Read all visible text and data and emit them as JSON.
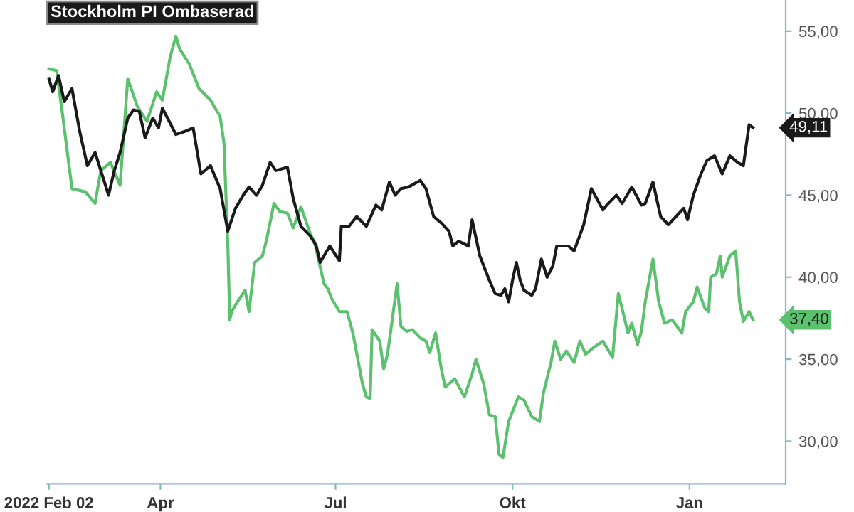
{
  "chart_data": {
    "type": "line",
    "xlim": [
      "2022-02-01",
      "2023-02-20"
    ],
    "xticks": [
      {
        "value": "2022-02-02",
        "label": "2022 Feb 02"
      },
      {
        "value": "2022-04-01",
        "label": "Apr"
      },
      {
        "value": "2022-07-01",
        "label": "Jul"
      },
      {
        "value": "2022-10-01",
        "label": "Okt"
      },
      {
        "value": "2023-01-01",
        "label": "Jan"
      }
    ],
    "ylim": [
      27.4,
      56.9
    ],
    "yticks": [
      {
        "value": 30,
        "label": "30,00"
      },
      {
        "value": 35,
        "label": "35,00"
      },
      {
        "value": 40,
        "label": "40,00"
      },
      {
        "value": 45,
        "label": "45,00"
      },
      {
        "value": 50,
        "label": "50,00"
      },
      {
        "value": 55,
        "label": "55,00"
      }
    ],
    "grid": false,
    "legend": "top left",
    "marker": "none",
    "line_style": "solid",
    "annotations": [
      "37,40",
      "49,11"
    ],
    "series": [
      {
        "color": "#5cc16f",
        "x": [
          "2022-02-02",
          "2022-02-06",
          "2022-02-09",
          "2022-02-14",
          "2022-02-21",
          "2022-02-26",
          "2022-03-01",
          "2022-03-06",
          "2022-03-11",
          "2022-03-15",
          "2022-03-20",
          "2022-03-25",
          "2022-03-30",
          "2022-04-02",
          "2022-04-06",
          "2022-04-09",
          "2022-04-11",
          "2022-04-16",
          "2022-04-21",
          "2022-04-27",
          "2022-05-02",
          "2022-05-04",
          "2022-05-06",
          "2022-05-07",
          "2022-05-08",
          "2022-05-11",
          "2022-05-15",
          "2022-05-17",
          "2022-05-20",
          "2022-05-24",
          "2022-05-26",
          "2022-05-30",
          "2022-06-02",
          "2022-06-06",
          "2022-06-09",
          "2022-06-13",
          "2022-06-18",
          "2022-06-20",
          "2022-06-25",
          "2022-06-27",
          "2022-06-29",
          "2022-07-03",
          "2022-07-07",
          "2022-07-10",
          "2022-07-15",
          "2022-07-17",
          "2022-07-19",
          "2022-07-20",
          "2022-07-24",
          "2022-07-26",
          "2022-07-28",
          "2022-07-30",
          "2022-08-02",
          "2022-08-04",
          "2022-08-07",
          "2022-08-10",
          "2022-08-14",
          "2022-08-17",
          "2022-08-19",
          "2022-08-22",
          "2022-08-25",
          "2022-08-27",
          "2022-09-01",
          "2022-09-06",
          "2022-09-10",
          "2022-09-12",
          "2022-09-16",
          "2022-09-19",
          "2022-09-22",
          "2022-09-24",
          "2022-09-26",
          "2022-09-29",
          "2022-10-04",
          "2022-10-07",
          "2022-10-11",
          "2022-10-15",
          "2022-10-17",
          "2022-10-21",
          "2022-10-23",
          "2022-10-26",
          "2022-10-29",
          "2022-11-02",
          "2022-11-05",
          "2022-11-08",
          "2022-11-12",
          "2022-11-17",
          "2022-11-22",
          "2022-11-25",
          "2022-11-28",
          "2022-11-30",
          "2022-12-02",
          "2022-12-05",
          "2022-12-07",
          "2022-12-09",
          "2022-12-13",
          "2022-12-16",
          "2022-12-19",
          "2022-12-23",
          "2022-12-28",
          "2022-12-30",
          "2023-01-03",
          "2023-01-05",
          "2023-01-09",
          "2023-01-11",
          "2023-01-12",
          "2023-01-15",
          "2023-01-17",
          "2023-01-18",
          "2023-01-22",
          "2023-01-25",
          "2023-01-27",
          "2023-01-29",
          "2023-02-01",
          "2023-02-03"
        ],
        "values": [
          52.7,
          52.6,
          50.0,
          45.4,
          45.2,
          44.5,
          46.5,
          47.0,
          45.6,
          52.1,
          50.4,
          49.5,
          51.3,
          50.8,
          53.4,
          54.7,
          53.9,
          53.0,
          51.5,
          50.8,
          49.8,
          48.2,
          42.0,
          37.4,
          37.9,
          38.5,
          39.2,
          37.9,
          40.9,
          41.3,
          42.2,
          44.5,
          44.0,
          43.9,
          43.0,
          44.3,
          42.6,
          42.2,
          39.6,
          39.3,
          38.7,
          37.9,
          37.9,
          36.6,
          33.5,
          32.7,
          32.6,
          36.8,
          36.1,
          34.4,
          35.3,
          37.0,
          39.6,
          37.0,
          36.7,
          36.8,
          36.3,
          36.1,
          35.4,
          36.6,
          34.4,
          33.3,
          33.8,
          32.7,
          34.1,
          35.0,
          33.5,
          31.6,
          31.5,
          29.2,
          29.0,
          31.2,
          32.7,
          32.5,
          31.5,
          31.2,
          32.9,
          34.8,
          36.1,
          35.0,
          35.5,
          34.8,
          36.1,
          35.3,
          35.7,
          36.1,
          35.1,
          39.0,
          37.6,
          36.6,
          37.2,
          35.9,
          36.7,
          38.5,
          41.1,
          38.5,
          37.2,
          37.4,
          36.6,
          37.9,
          38.5,
          39.4,
          38.1,
          37.9,
          40.0,
          40.2,
          41.3,
          40.0,
          41.3,
          41.6,
          38.5,
          37.3,
          37.9,
          37.4
        ]
      },
      {
        "name": "Stockholm PI Ombaserad",
        "color": "#1a1a1a",
        "x": [
          "2022-02-02",
          "2022-02-04",
          "2022-02-07",
          "2022-02-10",
          "2022-02-14",
          "2022-02-18",
          "2022-02-22",
          "2022-02-26",
          "2022-03-01",
          "2022-03-05",
          "2022-03-08",
          "2022-03-11",
          "2022-03-15",
          "2022-03-18",
          "2022-03-21",
          "2022-03-24",
          "2022-03-28",
          "2022-03-31",
          "2022-04-02",
          "2022-04-06",
          "2022-04-09",
          "2022-04-14",
          "2022-04-18",
          "2022-04-22",
          "2022-04-27",
          "2022-05-02",
          "2022-05-06",
          "2022-05-10",
          "2022-05-14",
          "2022-05-17",
          "2022-05-21",
          "2022-05-24",
          "2022-05-28",
          "2022-05-31",
          "2022-06-06",
          "2022-06-09",
          "2022-06-13",
          "2022-06-18",
          "2022-06-21",
          "2022-06-23",
          "2022-06-28",
          "2022-07-03",
          "2022-07-04",
          "2022-07-08",
          "2022-07-12",
          "2022-07-17",
          "2022-07-22",
          "2022-07-25",
          "2022-07-29",
          "2022-08-01",
          "2022-08-04",
          "2022-08-08",
          "2022-08-14",
          "2022-08-17",
          "2022-08-21",
          "2022-08-25",
          "2022-08-29",
          "2022-08-31",
          "2022-09-03",
          "2022-09-08",
          "2022-09-10",
          "2022-09-14",
          "2022-09-19",
          "2022-09-22",
          "2022-09-25",
          "2022-09-27",
          "2022-09-29",
          "2022-10-01",
          "2022-10-03",
          "2022-10-05",
          "2022-10-07",
          "2022-10-11",
          "2022-10-13",
          "2022-10-16",
          "2022-10-19",
          "2022-10-22",
          "2022-10-24",
          "2022-10-30",
          "2022-11-02",
          "2022-11-07",
          "2022-11-11",
          "2022-11-17",
          "2022-11-19",
          "2022-11-24",
          "2022-11-27",
          "2022-12-02",
          "2022-12-07",
          "2022-12-09",
          "2022-12-13",
          "2022-12-17",
          "2022-12-21",
          "2022-12-25",
          "2022-12-29",
          "2022-12-31",
          "2023-01-03",
          "2023-01-07",
          "2023-01-10",
          "2023-01-14",
          "2023-01-18",
          "2023-01-22",
          "2023-01-26",
          "2023-01-29",
          "2023-02-01",
          "2023-02-03"
        ],
        "values": [
          52.1,
          51.3,
          52.3,
          50.7,
          51.5,
          48.9,
          46.8,
          47.6,
          46.5,
          45.0,
          46.5,
          47.6,
          49.7,
          50.2,
          50.1,
          48.5,
          49.7,
          49.1,
          50.3,
          49.4,
          48.7,
          48.9,
          49.1,
          46.3,
          46.8,
          45.4,
          42.8,
          44.2,
          45.0,
          45.5,
          45.0,
          45.6,
          47.0,
          46.5,
          46.7,
          44.8,
          43.1,
          42.5,
          41.9,
          40.9,
          41.9,
          41.0,
          43.1,
          43.1,
          43.7,
          43.1,
          44.4,
          44.1,
          45.8,
          45.0,
          45.4,
          45.5,
          45.9,
          45.4,
          43.7,
          43.3,
          42.8,
          41.9,
          42.2,
          41.9,
          43.5,
          41.3,
          39.8,
          39.0,
          38.9,
          39.3,
          38.5,
          39.8,
          40.9,
          39.8,
          39.2,
          38.9,
          39.3,
          41.1,
          40.0,
          40.7,
          41.9,
          41.9,
          41.6,
          43.2,
          45.4,
          44.1,
          44.4,
          45.0,
          44.5,
          45.5,
          44.4,
          44.5,
          45.8,
          43.7,
          43.2,
          43.7,
          44.2,
          43.5,
          45.0,
          46.3,
          47.1,
          47.4,
          46.3,
          47.4,
          47.0,
          46.8,
          49.3,
          49.11
        ]
      }
    ]
  }
}
